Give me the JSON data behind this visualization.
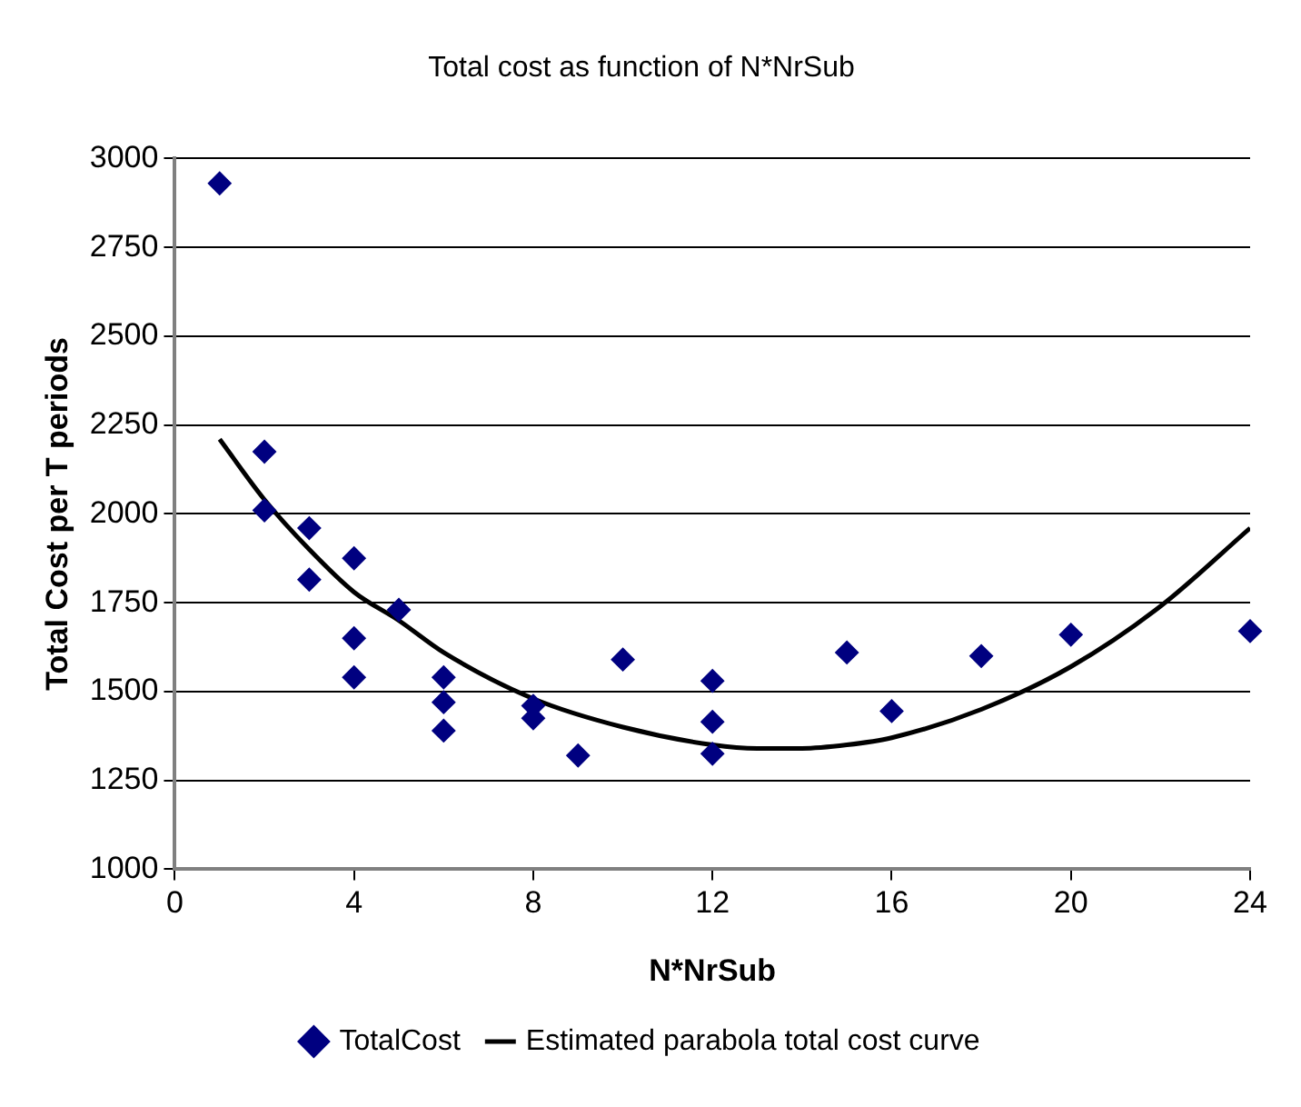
{
  "chart_data": {
    "type": "scatter",
    "title": "Total cost as function of N*NrSub",
    "xlabel": "N*NrSub",
    "ylabel": "Total Cost per T periods",
    "xlim": [
      0,
      24
    ],
    "xticks": [
      0,
      4,
      8,
      12,
      16,
      20,
      24
    ],
    "ylim": [
      1000,
      3000
    ],
    "yticks": [
      1000,
      1250,
      1500,
      1750,
      2000,
      2250,
      2500,
      2750,
      3000
    ],
    "grid": "y",
    "legend": "bottom",
    "series": [
      {
        "name": "TotalCost",
        "marker": "diamond",
        "color": "#000080",
        "x": [
          1,
          2,
          2,
          3,
          3,
          4,
          4,
          4,
          5,
          6,
          6,
          6,
          8,
          8,
          9,
          10,
          12,
          12,
          12,
          15,
          16,
          18,
          20,
          24
        ],
        "values": [
          2930,
          2175,
          2010,
          1960,
          1815,
          1875,
          1650,
          1540,
          1730,
          1540,
          1470,
          1390,
          1460,
          1425,
          1320,
          1590,
          1530,
          1415,
          1325,
          1610,
          1445,
          1600,
          1660,
          1670
        ]
      },
      {
        "name": "Estimated parabola total cost curve",
        "type": "line",
        "marker": "none",
        "color": "#000000",
        "line_style": "solid",
        "x": [
          1,
          2,
          3,
          4,
          5,
          6,
          8,
          10,
          12,
          13,
          14,
          15,
          16,
          18,
          20,
          22,
          24
        ],
        "values": [
          2210,
          2040,
          1900,
          1780,
          1700,
          1610,
          1480,
          1400,
          1350,
          1340,
          1340,
          1350,
          1370,
          1450,
          1570,
          1740,
          1960
        ]
      }
    ]
  }
}
